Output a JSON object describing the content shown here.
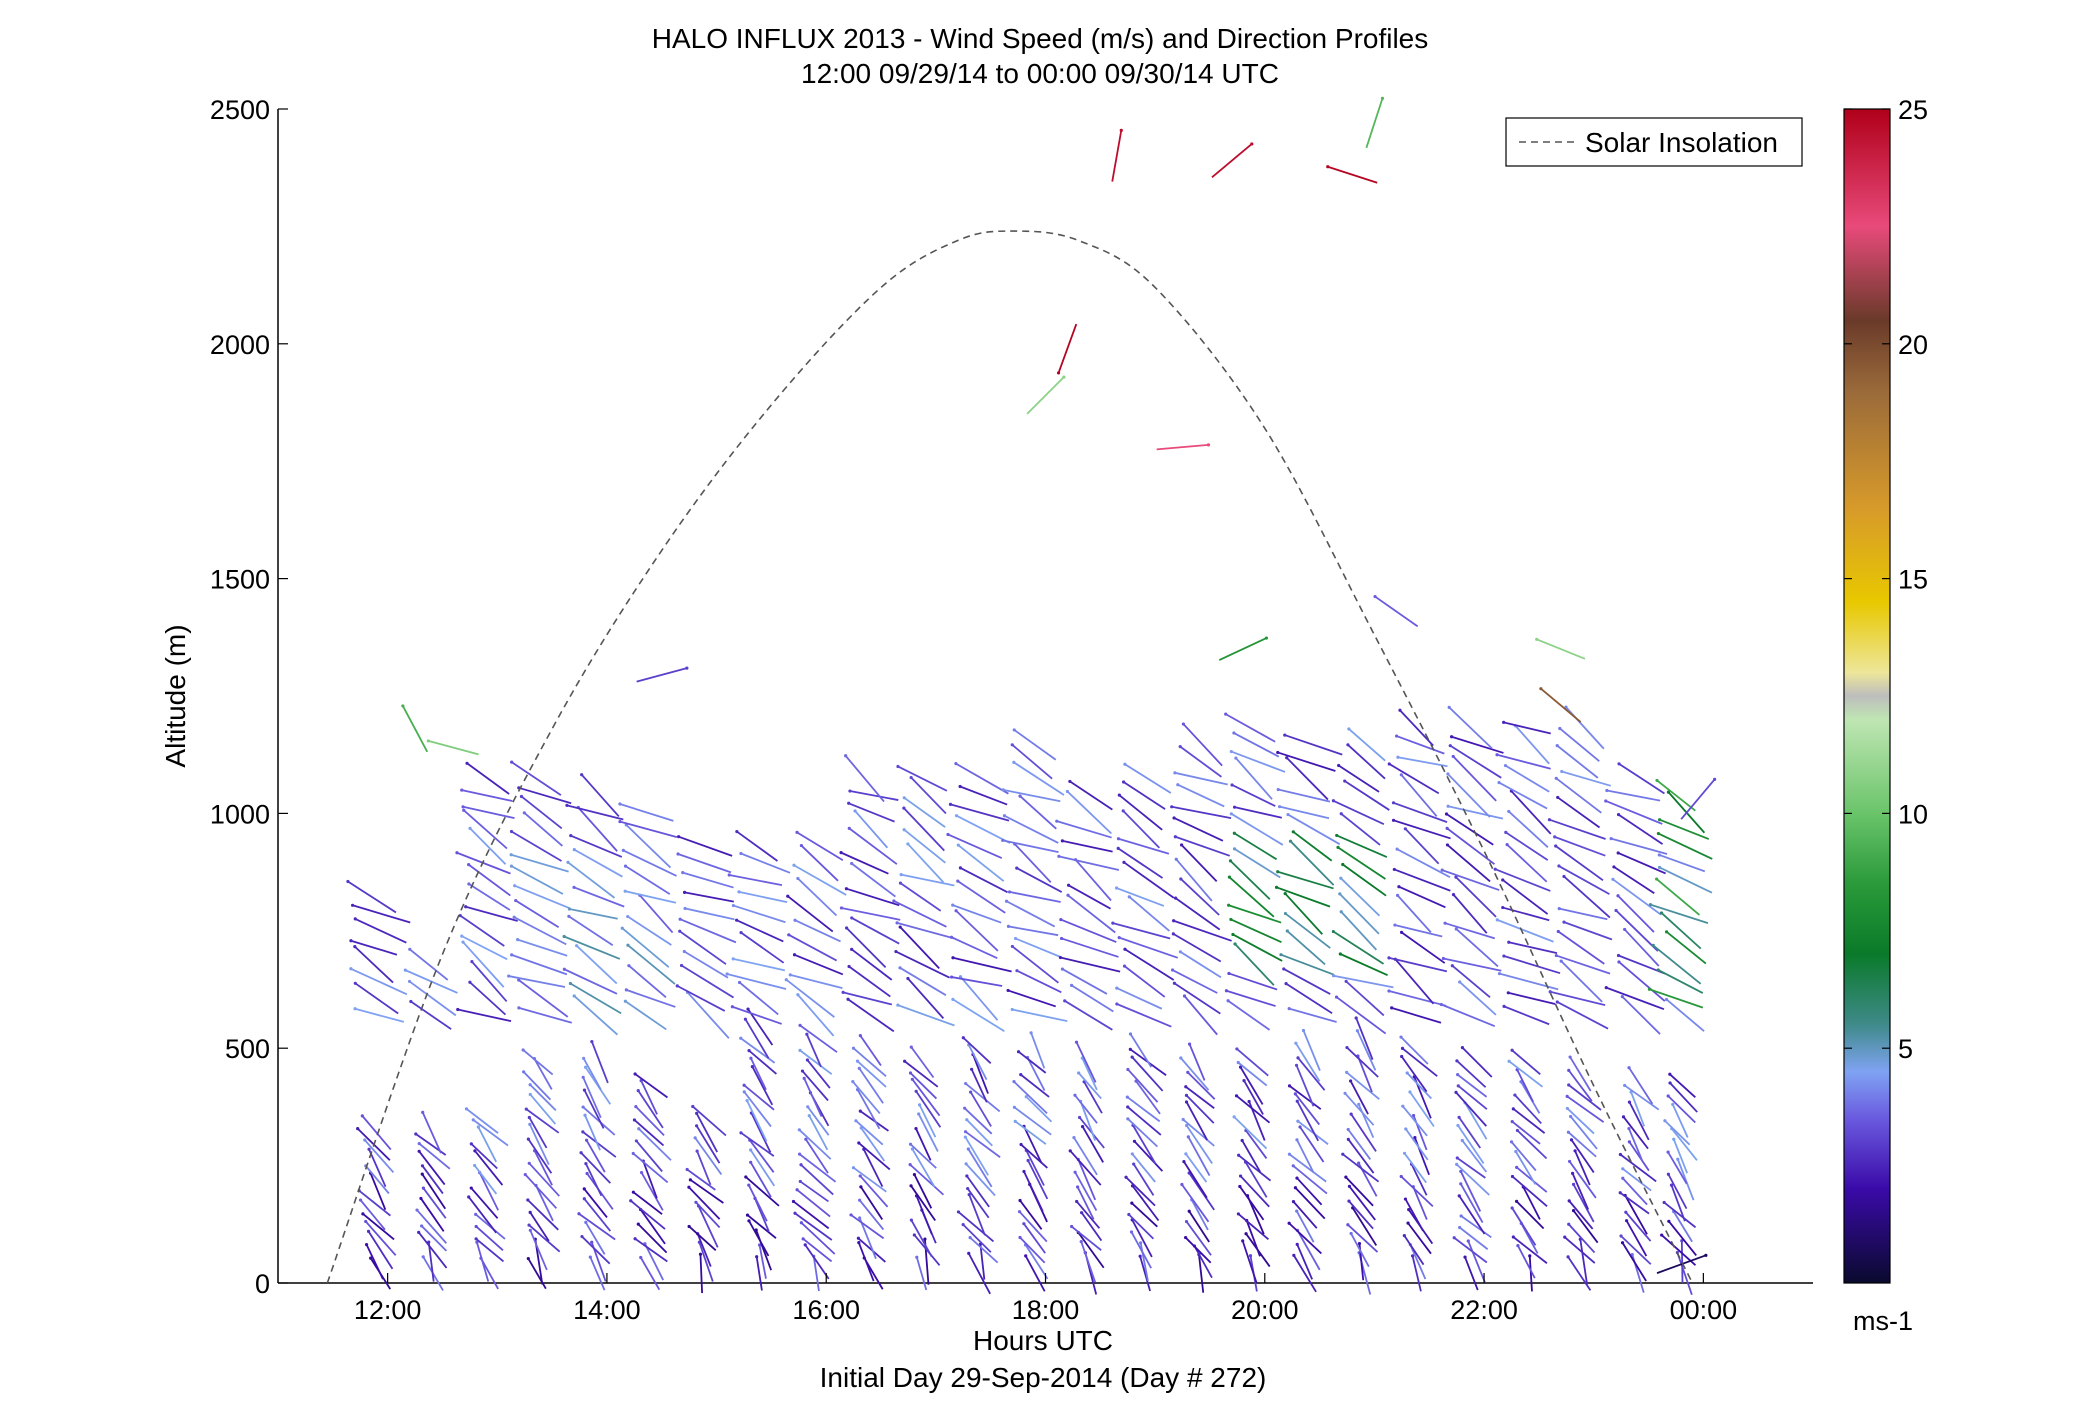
{
  "chart_data": {
    "type": "quiver",
    "title": "HALO INFLUX 2013 - Wind Speed (m/s) and Direction Profiles",
    "subtitle": "12:00 09/29/14 to 00:00 09/30/14  UTC",
    "xlabel": "Hours UTC",
    "xlabel2": "Initial Day 29-Sep-2014 (Day # 272)",
    "ylabel": "Altitude (m)",
    "xlim": [
      11,
      25
    ],
    "ylim": [
      0,
      2500
    ],
    "x_ticks": [
      {
        "value": 12,
        "label": "12:00"
      },
      {
        "value": 14,
        "label": "14:00"
      },
      {
        "value": 16,
        "label": "16:00"
      },
      {
        "value": 18,
        "label": "18:00"
      },
      {
        "value": 20,
        "label": "20:00"
      },
      {
        "value": 22,
        "label": "22:00"
      },
      {
        "value": 24,
        "label": "00:00"
      }
    ],
    "y_ticks": [
      0,
      500,
      1000,
      1500,
      2000,
      2500
    ],
    "legend": {
      "entries": [
        "Solar Insolation"
      ],
      "location": "top-right"
    },
    "solar_insolation": {
      "style": "dashed",
      "color": "#555555",
      "hours": [
        11.45,
        12.5,
        13.5,
        14.5,
        15.5,
        16.5,
        17.2,
        17.7,
        18.3,
        19.0,
        20.0,
        21.0,
        22.0,
        23.0,
        23.9
      ],
      "altitude_m": [
        0,
        700,
        1180,
        1560,
        1870,
        2120,
        2220,
        2240,
        2220,
        2120,
        1820,
        1380,
        920,
        420,
        0
      ]
    },
    "colorbar": {
      "label": "ms-1",
      "range": [
        0,
        25
      ],
      "ticks": [
        5,
        10,
        15,
        20,
        25
      ],
      "colormap": [
        {
          "value": 0,
          "color": "#0a0a2e"
        },
        {
          "value": 2,
          "color": "#3a0aa8"
        },
        {
          "value": 3.5,
          "color": "#6a5adf"
        },
        {
          "value": 4.5,
          "color": "#7fa3f2"
        },
        {
          "value": 5.5,
          "color": "#3f8a8a"
        },
        {
          "value": 7,
          "color": "#0a7a2a"
        },
        {
          "value": 8.5,
          "color": "#2a9a3a"
        },
        {
          "value": 10,
          "color": "#6ac46a"
        },
        {
          "value": 12,
          "color": "#bfe6b3"
        },
        {
          "value": 12.5,
          "color": "#bdbdbd"
        },
        {
          "value": 13,
          "color": "#ede69a"
        },
        {
          "value": 14.5,
          "color": "#e8c800"
        },
        {
          "value": 16.5,
          "color": "#d79a2a"
        },
        {
          "value": 19,
          "color": "#9a6a3a"
        },
        {
          "value": 20.5,
          "color": "#6a3a2a"
        },
        {
          "value": 22.5,
          "color": "#e84a7a"
        },
        {
          "value": 25,
          "color": "#b0001a"
        }
      ]
    },
    "profile_hours": [
      11.9,
      12.4,
      12.9,
      13.4,
      13.9,
      14.4,
      14.9,
      15.4,
      15.9,
      16.4,
      16.9,
      17.4,
      17.9,
      18.4,
      18.9,
      19.4,
      19.9,
      20.4,
      20.9,
      21.4,
      21.9,
      22.4,
      22.9,
      23.4,
      23.8
    ],
    "profile_top_m": [
      320,
      340,
      360,
      480,
      480,
      420,
      360,
      560,
      520,
      500,
      480,
      500,
      500,
      480,
      500,
      490,
      480,
      500,
      520,
      500,
      480,
      470,
      460,
      440,
      420
    ],
    "upper_top_m": [
      840,
      700,
      1100,
      1100,
      1050,
      1030,
      960,
      960,
      960,
      1100,
      1100,
      1100,
      1150,
      1060,
      1100,
      1150,
      1210,
      1150,
      1150,
      1200,
      1200,
      1200,
      1200,
      1100,
      1050
    ],
    "winds": [
      {
        "hour": 12.25,
        "alt_m": 1180,
        "speed": 9.2,
        "dir_deg": 152
      },
      {
        "hour": 12.6,
        "alt_m": 1140,
        "speed": 10.5,
        "dir_deg": 105
      },
      {
        "hour": 18.65,
        "alt_m": 2400,
        "speed": 24.5,
        "dir_deg": 190
      },
      {
        "hour": 19.7,
        "alt_m": 2390,
        "speed": 24.5,
        "dir_deg": 230
      },
      {
        "hour": 20.8,
        "alt_m": 2360,
        "speed": 24.8,
        "dir_deg": 108
      },
      {
        "hour": 21.0,
        "alt_m": 2470,
        "speed": 9.5,
        "dir_deg": 198
      },
      {
        "hour": 18.2,
        "alt_m": 1990,
        "speed": 24.8,
        "dir_deg": 20
      },
      {
        "hour": 18.0,
        "alt_m": 1890,
        "speed": 10.8,
        "dir_deg": 225
      },
      {
        "hour": 19.25,
        "alt_m": 1780,
        "speed": 22.5,
        "dir_deg": 265
      },
      {
        "hour": 19.8,
        "alt_m": 1350,
        "speed": 8.2,
        "dir_deg": 245
      },
      {
        "hour": 21.2,
        "alt_m": 1430,
        "speed": 3.5,
        "dir_deg": 125
      },
      {
        "hour": 22.7,
        "alt_m": 1350,
        "speed": 10.8,
        "dir_deg": 112
      },
      {
        "hour": 22.7,
        "alt_m": 1230,
        "speed": 19.5,
        "dir_deg": 130
      },
      {
        "hour": 14.5,
        "alt_m": 1295,
        "speed": 3.0,
        "dir_deg": 255
      },
      {
        "hour": 23.95,
        "alt_m": 1030,
        "speed": 3.2,
        "dir_deg": 220
      },
      {
        "hour": 23.8,
        "alt_m": 40,
        "speed": 0.8,
        "dir_deg": 250
      }
    ]
  }
}
